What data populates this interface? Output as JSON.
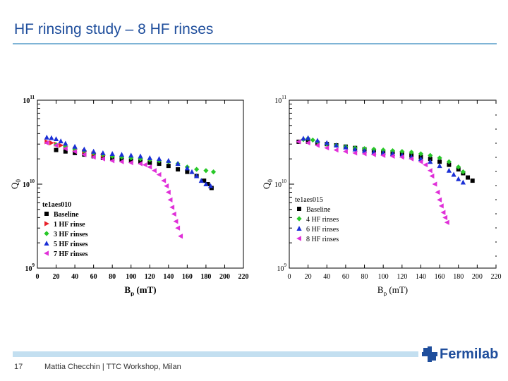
{
  "slide": {
    "title": "HF rinsing study – 8 HF rinses",
    "page_number": "17",
    "footer": "Mattia Checchin | TTC Workshop, Milan",
    "logo_text": "Fermilab",
    "logo_icon": "fermilab-logo-icon",
    "colors": {
      "title": "#1f4e9c",
      "rule": "#7fb4d6",
      "footer_bar": "#c3dff0"
    }
  },
  "chart_data": [
    {
      "type": "scatter",
      "title": "",
      "xlabel": "B",
      "xlabel_sub": "p",
      "xlabel_unit": "(mT)",
      "ylabel": "Q",
      "ylabel_sub": "0",
      "xlim": [
        0,
        220
      ],
      "ylim_log10": [
        9,
        11
      ],
      "x_ticks": [
        "0",
        "20",
        "40",
        "60",
        "80",
        "100",
        "120",
        "140",
        "160",
        "180",
        "200",
        "220"
      ],
      "y_ticks": [
        "10",
        "10",
        "10"
      ],
      "y_tick_exponents": [
        "9",
        "10",
        "11"
      ],
      "log_scale_y": true,
      "grid": false,
      "legend": {
        "title": "te1aes010",
        "placement": "bottom-left"
      },
      "series": [
        {
          "name": "Baseline",
          "marker": "square",
          "color": "#000000",
          "x": [
            20,
            30,
            40,
            50,
            60,
            70,
            80,
            90,
            100,
            110,
            120,
            130,
            140,
            150,
            160,
            170,
            178,
            182,
            186
          ],
          "y": [
            25500000000.0,
            24500000000.0,
            23500000000.0,
            22500000000.0,
            21500000000.0,
            20500000000.0,
            20000000000.0,
            19500000000.0,
            19000000000.0,
            18500000000.0,
            18000000000.0,
            17500000000.0,
            16500000000.0,
            15000000000.0,
            14000000000.0,
            12500000000.0,
            11000000000.0,
            10000000000.0,
            9000000000.0
          ]
        },
        {
          "name": "1 HF rinse",
          "marker": "triangle-right",
          "color": "#e8202a",
          "x": [
            10,
            15,
            20,
            25,
            30,
            40,
            50,
            60,
            70
          ],
          "y": [
            32000000000.0,
            31000000000.0,
            30000000000.0,
            29000000000.0,
            28000000000.0,
            26000000000.0,
            24500000000.0,
            23000000000.0,
            22000000000.0
          ]
        },
        {
          "name": "3 HF rinses",
          "marker": "diamond",
          "color": "#28c828",
          "x": [
            20,
            30,
            40,
            50,
            60,
            70,
            80,
            90,
            100,
            110,
            120,
            130,
            140,
            150,
            160,
            170,
            180,
            188
          ],
          "y": [
            29500000000.0,
            28000000000.0,
            26000000000.0,
            25000000000.0,
            23500000000.0,
            22500000000.0,
            21500000000.0,
            21000000000.0,
            20500000000.0,
            20000000000.0,
            19500000000.0,
            19000000000.0,
            18500000000.0,
            17500000000.0,
            16000000000.0,
            15000000000.0,
            14500000000.0,
            14000000000.0
          ]
        },
        {
          "name": "5 HF rinses",
          "marker": "triangle-up",
          "color": "#1a2fd6",
          "x": [
            10,
            15,
            20,
            25,
            30,
            40,
            50,
            60,
            70,
            80,
            90,
            100,
            110,
            120,
            130,
            140,
            150,
            160,
            165,
            170,
            175,
            180,
            185
          ],
          "y": [
            36000000000.0,
            35500000000.0,
            34500000000.0,
            32500000000.0,
            30500000000.0,
            28000000000.0,
            26000000000.0,
            24500000000.0,
            23500000000.0,
            23000000000.0,
            22500000000.0,
            22000000000.0,
            21500000000.0,
            20500000000.0,
            20000000000.0,
            19000000000.0,
            17500000000.0,
            15500000000.0,
            14000000000.0,
            12500000000.0,
            11000000000.0,
            10000000000.0,
            9500000000.0
          ]
        },
        {
          "name": "7 HF rinses",
          "marker": "triangle-left",
          "color": "#e030d8",
          "x": [
            10,
            20,
            30,
            40,
            50,
            60,
            70,
            80,
            90,
            100,
            110,
            115,
            120,
            125,
            130,
            135,
            138,
            140,
            142,
            144,
            146,
            148,
            150,
            153
          ],
          "y": [
            31000000000.0,
            29000000000.0,
            26500000000.0,
            24500000000.0,
            22500000000.0,
            21000000000.0,
            20000000000.0,
            19000000000.0,
            18500000000.0,
            18000000000.0,
            17500000000.0,
            17000000000.0,
            16000000000.0,
            14500000000.0,
            13000000000.0,
            11000000000.0,
            9500000000.0,
            8000000000.0,
            6500000000.0,
            5300000000.0,
            4400000000.0,
            3600000000.0,
            3000000000.0,
            2400000000.0
          ]
        }
      ]
    },
    {
      "type": "scatter",
      "title": "",
      "xlabel": "B",
      "xlabel_sub": "p",
      "xlabel_unit": "(mT)",
      "ylabel": "Q",
      "ylabel_sub": "0",
      "xlim": [
        0,
        220
      ],
      "ylim_log10": [
        9,
        11
      ],
      "x_ticks": [
        "0",
        "20",
        "40",
        "60",
        "80",
        "100",
        "120",
        "140",
        "160",
        "180",
        "200",
        "220"
      ],
      "y_ticks": [
        "10",
        "10",
        "10"
      ],
      "y_tick_exponents": [
        "9",
        "10",
        "11"
      ],
      "log_scale_y": true,
      "grid": false,
      "legend": {
        "title": "te1aes015",
        "placement": "bottom-left"
      },
      "series": [
        {
          "name": "Baseline",
          "marker": "square",
          "color": "#000000",
          "x": [
            10,
            20,
            30,
            40,
            50,
            60,
            70,
            80,
            90,
            100,
            110,
            120,
            130,
            140,
            150,
            160,
            170,
            180,
            185,
            190,
            195
          ],
          "y": [
            32000000000.0,
            32000000000.0,
            31000000000.0,
            30000000000.0,
            29000000000.0,
            28000000000.0,
            27000000000.0,
            26000000000.0,
            25000000000.0,
            24000000000.0,
            23500000000.0,
            23000000000.0,
            22000000000.0,
            21000000000.0,
            20000000000.0,
            18500000000.0,
            17000000000.0,
            15000000000.0,
            13500000000.0,
            12000000000.0,
            11000000000.0
          ]
        },
        {
          "name": "4 HF rinses",
          "marker": "diamond",
          "color": "#28c828",
          "x": [
            15,
            20,
            25,
            30,
            40,
            50,
            60,
            70,
            80,
            90,
            100,
            110,
            120,
            130,
            140,
            150,
            160,
            170,
            180,
            185
          ],
          "y": [
            34000000000.0,
            35000000000.0,
            33500000000.0,
            32000000000.0,
            30000000000.0,
            29000000000.0,
            28000000000.0,
            27000000000.0,
            26500000000.0,
            26000000000.0,
            25500000000.0,
            25000000000.0,
            24500000000.0,
            24000000000.0,
            23000000000.0,
            22000000000.0,
            20500000000.0,
            18500000000.0,
            16000000000.0,
            14000000000.0
          ]
        },
        {
          "name": "6 HF rinses",
          "marker": "triangle-up",
          "color": "#1a2fd6",
          "x": [
            15,
            20,
            30,
            40,
            50,
            60,
            70,
            80,
            90,
            100,
            110,
            120,
            130,
            140,
            150,
            160,
            170,
            175,
            180,
            185
          ],
          "y": [
            35000000000.0,
            35500000000.0,
            33000000000.0,
            31000000000.0,
            29000000000.0,
            27500000000.0,
            26000000000.0,
            25000000000.0,
            24000000000.0,
            23500000000.0,
            23000000000.0,
            22000000000.0,
            21000000000.0,
            20000000000.0,
            18500000000.0,
            16500000000.0,
            14500000000.0,
            13000000000.0,
            11500000000.0,
            10500000000.0
          ]
        },
        {
          "name": "8 HF rinses",
          "marker": "triangle-left",
          "color": "#e030d8",
          "x": [
            10,
            20,
            30,
            40,
            50,
            60,
            70,
            80,
            90,
            100,
            110,
            120,
            130,
            140,
            145,
            150,
            152,
            155,
            158,
            160,
            162,
            164,
            166,
            168
          ],
          "y": [
            32000000000.0,
            31000000000.0,
            29000000000.0,
            27000000000.0,
            25500000000.0,
            24500000000.0,
            23500000000.0,
            23000000000.0,
            22500000000.0,
            22000000000.0,
            21500000000.0,
            21000000000.0,
            20000000000.0,
            18500000000.0,
            17000000000.0,
            14500000000.0,
            12500000000.0,
            10000000000.0,
            8000000000.0,
            6500000000.0,
            5500000000.0,
            4600000000.0,
            4000000000.0,
            3500000000.0
          ]
        }
      ]
    }
  ]
}
